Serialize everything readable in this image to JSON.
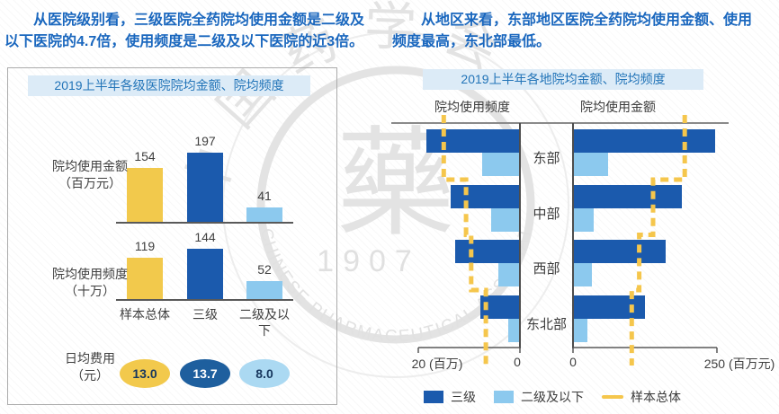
{
  "page": {
    "left_summary": "从医院级别看，三级医院全药院均使用金额是二级及以下医院的4.7倍，使用频度是二级及以下医院的近3倍。",
    "right_summary": "从地区来看，东部地区医院全药院均使用金额、使用频度最高，东北部最低。"
  },
  "watermark": {
    "org_cn": "中国药学会",
    "org_en": "CHINESE PHARMACEUTICAL ASSOCIATION",
    "year": "1907",
    "seal_char": "藥"
  },
  "colors": {
    "tier3_dark_blue": "#1B5AAD",
    "tier2_light_blue": "#8CC9EE",
    "sample_yellow": "#F2C94C",
    "sample_dash_yellow": "#F5C64C",
    "ellipse_dark": "#1E5F9E",
    "ellipse_light": "#ABD9F2",
    "title_band_bg": "#DCEBF7",
    "title_text": "#2274B8",
    "summary_text": "#1A67BE",
    "axis_line": "#595959"
  },
  "chart_data": [
    {
      "type": "bar",
      "title": "2019上半年各级医院院均金额、院均频度",
      "categories": [
        "样本总体",
        "三级",
        "二级及以下"
      ],
      "category_colors": [
        "#F2C94C",
        "#1B5AAD",
        "#8CC9EE"
      ],
      "rows": [
        {
          "label_line1": "院均使用金额",
          "label_line2": "（百万元）",
          "values": [
            154,
            197,
            41
          ]
        },
        {
          "label_line1": "院均使用频度",
          "label_line2": "（十万）",
          "values": [
            119,
            144,
            52
          ]
        }
      ],
      "ellipse_row": {
        "label_line1": "日均费用",
        "label_line2": "（元）",
        "values": [
          "13.0",
          "13.7",
          "8.0"
        ]
      }
    },
    {
      "type": "bar",
      "orientation": "horizontal-tornado",
      "title": "2019上半年各地院均金额、院均频度",
      "categories": [
        "东部",
        "中部",
        "西部",
        "东北部"
      ],
      "panels": [
        {
          "header": "院均使用频度",
          "direction": "left",
          "axis_max": 20,
          "axis_label_max": "20 (百万)",
          "axis_label_zero": "0",
          "series": [
            {
              "name": "三级",
              "values": [
                18.2,
                13.5,
                12.6,
                7.6
              ]
            },
            {
              "name": "二级及以下",
              "values": [
                7.3,
                5.5,
                4.0,
                2.2
              ]
            },
            {
              "name": "样本总体",
              "values": [
                15.0,
                10.6,
                9.6,
                6.7
              ]
            }
          ]
        },
        {
          "header": "院均使用金额",
          "direction": "right",
          "axis_max": 250,
          "axis_label_zero": "0",
          "axis_label_max": "250 (百万元)",
          "series": [
            {
              "name": "三级",
              "values": [
                245,
                187,
                160,
                123
              ]
            },
            {
              "name": "二级及以下",
              "values": [
                60,
                35,
                32,
                24
              ]
            },
            {
              "name": "样本总体",
              "values": [
                194,
                139,
                115,
                102
              ]
            }
          ]
        }
      ],
      "legend": [
        {
          "label": "三级",
          "swatch": "square",
          "color": "#1B5AAD"
        },
        {
          "label": "二级及以下",
          "swatch": "square",
          "color": "#8CC9EE"
        },
        {
          "label": "样本总体",
          "swatch": "dash",
          "color": "#F5C64C"
        }
      ]
    }
  ]
}
